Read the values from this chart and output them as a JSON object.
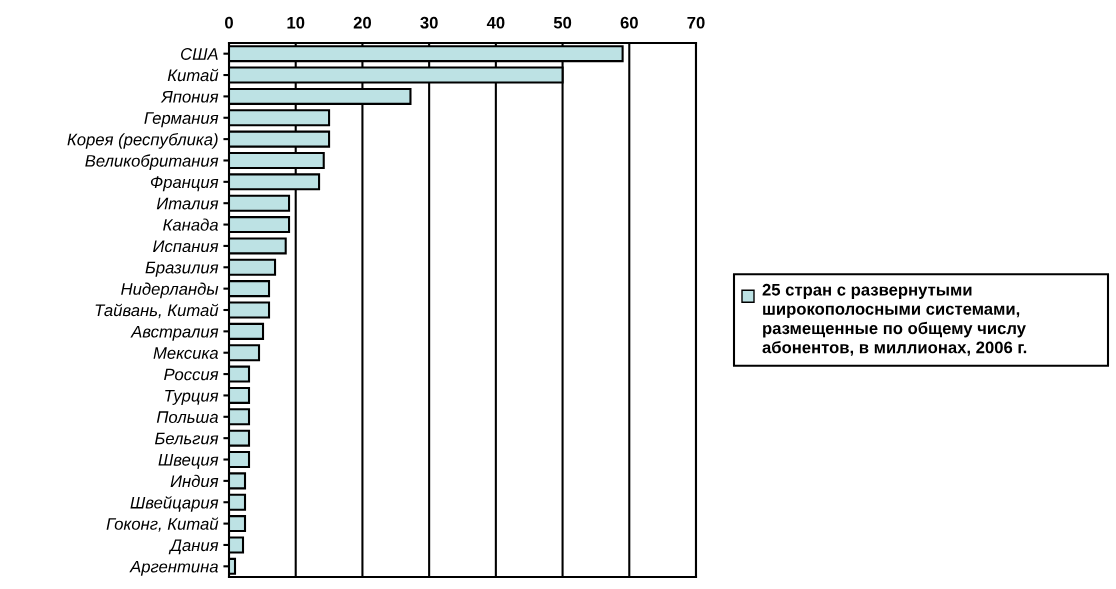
{
  "chart_data": {
    "type": "bar",
    "orientation": "horizontal",
    "categories": [
      "США",
      "Китай",
      "Япония",
      "Германия",
      "Корея (республика)",
      "Великобритания",
      "Франция",
      "Италия",
      "Канада",
      "Испания",
      "Бразилия",
      "Нидерланды",
      "Тайвань, Китай",
      "Австралия",
      "Мексика",
      "Россия",
      "Турция",
      "Польша",
      "Бельгия",
      "Швеция",
      "Индия",
      "Швейцария",
      "Гоконг, Китай",
      "Дания",
      "Аргентина"
    ],
    "series": [
      {
        "name": "25 стран с развернутыми широкополосными системами, размещенные по общему числу абонентов, в миллионах, 2006 г.",
        "color": "#bde2e4",
        "values": [
          59,
          50,
          27.2,
          15,
          15,
          14.2,
          13.5,
          9,
          9,
          8.5,
          6.9,
          6,
          6,
          5.1,
          4.5,
          3,
          3,
          3,
          3,
          3,
          2.4,
          2.4,
          2.4,
          2.1,
          0.9
        ]
      }
    ],
    "xlim": [
      0,
      70
    ],
    "xticks": [
      0,
      10,
      20,
      30,
      40,
      50,
      60,
      70
    ],
    "grid": "x",
    "legend": "right"
  }
}
